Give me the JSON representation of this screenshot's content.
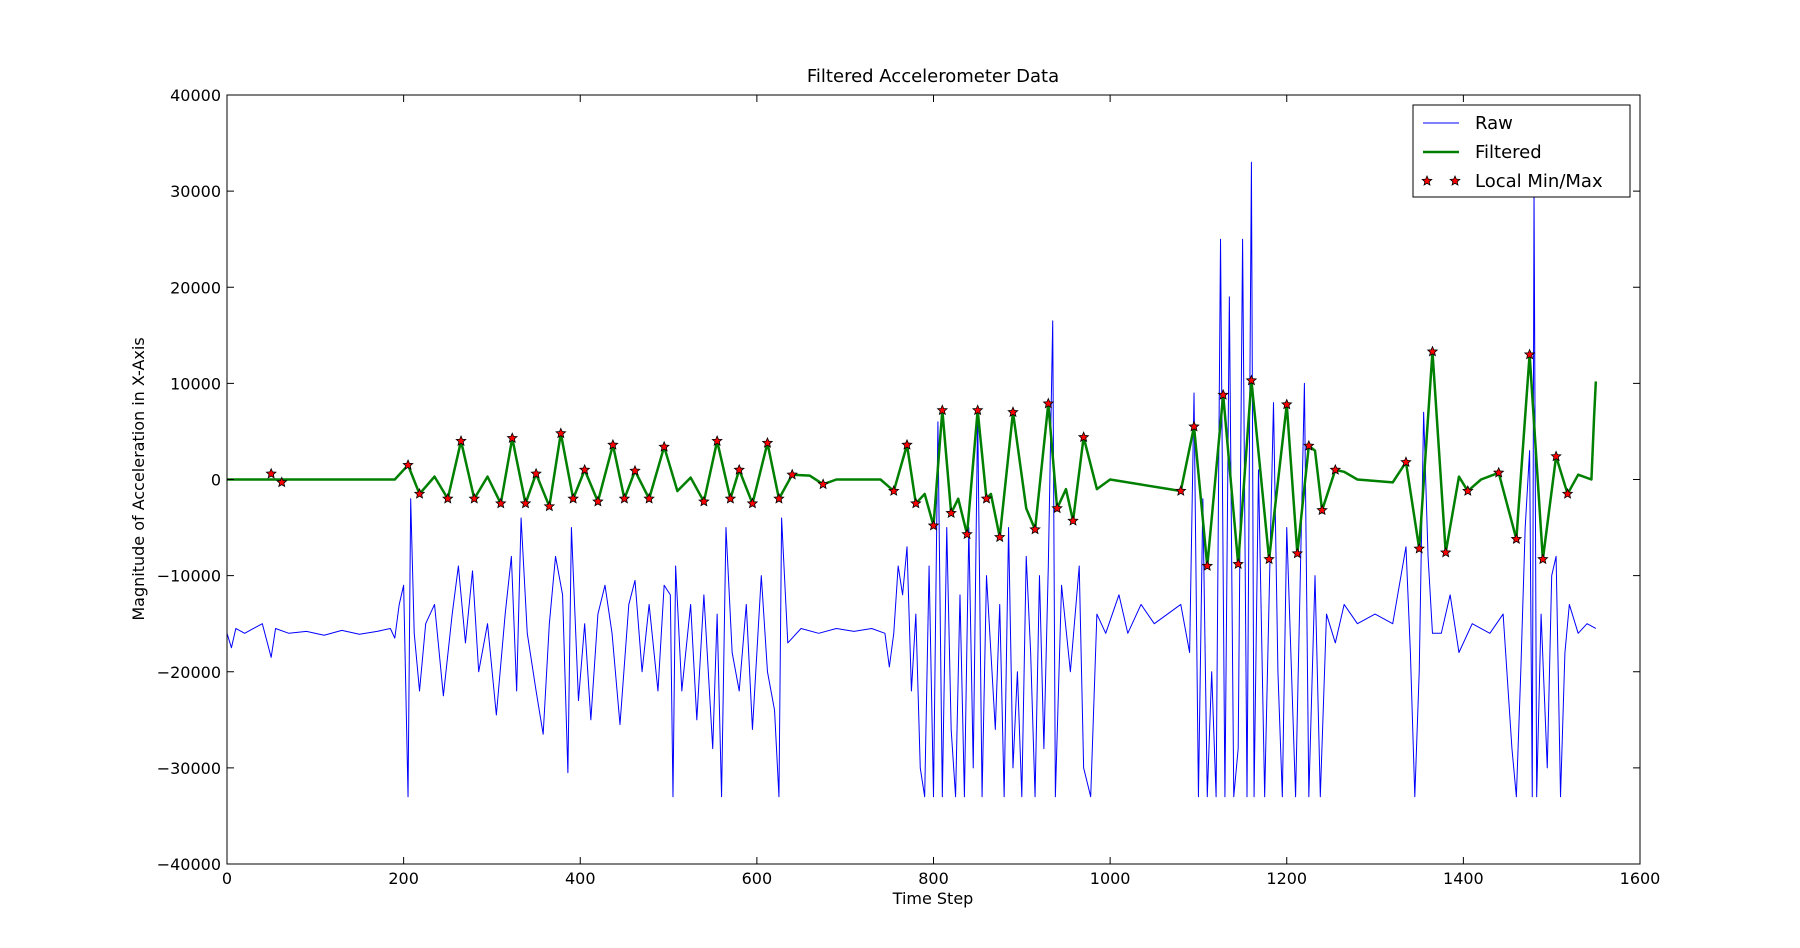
{
  "chart_data": {
    "type": "line",
    "title": "Filtered Accelerometer Data",
    "xlabel": "Time Step",
    "ylabel": "Magnitude of Acceleration in X-Axis",
    "xlim": [
      0,
      1600
    ],
    "ylim": [
      -40000,
      40000
    ],
    "xticks": [
      0,
      200,
      400,
      600,
      800,
      1000,
      1200,
      1400,
      1600
    ],
    "yticks": [
      {
        "value": -40000,
        "label": "−40000"
      },
      {
        "value": -30000,
        "label": "−30000"
      },
      {
        "value": -20000,
        "label": "−20000"
      },
      {
        "value": -10000,
        "label": "−10000"
      },
      0,
      10000,
      20000,
      30000,
      40000
    ],
    "legend": "upper right",
    "series": [
      {
        "name": "Raw",
        "color": "#0000ff",
        "style": "line",
        "linewidth": 1,
        "x": [
          0,
          5,
          10,
          20,
          30,
          40,
          50,
          55,
          70,
          90,
          110,
          130,
          150,
          170,
          185,
          190,
          195,
          200,
          205,
          208,
          212,
          218,
          225,
          235,
          245,
          255,
          262,
          270,
          278,
          285,
          295,
          305,
          315,
          322,
          328,
          333,
          340,
          350,
          358,
          365,
          372,
          380,
          386,
          390,
          398,
          405,
          412,
          420,
          428,
          436,
          445,
          455,
          462,
          470,
          478,
          488,
          495,
          502,
          505,
          508,
          515,
          525,
          532,
          540,
          550,
          555,
          560,
          565,
          572,
          580,
          588,
          595,
          605,
          612,
          620,
          625,
          628,
          635,
          650,
          670,
          690,
          710,
          730,
          745,
          750,
          755,
          760,
          765,
          770,
          775,
          780,
          785,
          790,
          795,
          800,
          805,
          810,
          815,
          820,
          825,
          830,
          835,
          840,
          845,
          850,
          855,
          860,
          870,
          875,
          880,
          885,
          890,
          895,
          900,
          905,
          910,
          915,
          920,
          925,
          930,
          935,
          938,
          945,
          955,
          965,
          970,
          978,
          985,
          995,
          1010,
          1020,
          1035,
          1050,
          1065,
          1080,
          1090,
          1095,
          1100,
          1105,
          1110,
          1115,
          1120,
          1125,
          1130,
          1135,
          1140,
          1145,
          1150,
          1155,
          1160,
          1163,
          1168,
          1175,
          1185,
          1190,
          1195,
          1200,
          1210,
          1220,
          1225,
          1232,
          1238,
          1245,
          1255,
          1265,
          1280,
          1300,
          1320,
          1335,
          1340,
          1345,
          1350,
          1355,
          1360,
          1365,
          1375,
          1385,
          1395,
          1410,
          1430,
          1445,
          1455,
          1460,
          1465,
          1470,
          1475,
          1478,
          1480,
          1483,
          1488,
          1495,
          1500,
          1505,
          1510,
          1515,
          1520,
          1530,
          1540,
          1550
        ],
        "values": [
          -16000,
          -17500,
          -15500,
          -16000,
          -15500,
          -15000,
          -18500,
          -15500,
          -16000,
          -15800,
          -16200,
          -15700,
          -16100,
          -15800,
          -15500,
          -16500,
          -13000,
          -11000,
          -33000,
          -2000,
          -16000,
          -22000,
          -15000,
          -13000,
          -22500,
          -14000,
          -9000,
          -17000,
          -9500,
          -20000,
          -15000,
          -24500,
          -14000,
          -8000,
          -22000,
          -4000,
          -16000,
          -22000,
          -26500,
          -15000,
          -8000,
          -12000,
          -30500,
          -5000,
          -23000,
          -15000,
          -25000,
          -14000,
          -11000,
          -16000,
          -25500,
          -13000,
          -10500,
          -20000,
          -13000,
          -22000,
          -11000,
          -12000,
          -33000,
          -9000,
          -22000,
          -13000,
          -25000,
          -12000,
          -28000,
          -14000,
          -33000,
          -5000,
          -18000,
          -22000,
          -13000,
          -26000,
          -10000,
          -20000,
          -24000,
          -33000,
          -4000,
          -17000,
          -15500,
          -16000,
          -15500,
          -15800,
          -15500,
          -16000,
          -19500,
          -16000,
          -9000,
          -12000,
          -7000,
          -22000,
          -14000,
          -30000,
          -33000,
          -9000,
          -33000,
          6000,
          -33000,
          -5000,
          -26000,
          -33000,
          -12000,
          -33000,
          -5000,
          -30000,
          7000,
          -33000,
          -10000,
          -26000,
          -13000,
          -33000,
          -5000,
          -30000,
          -20000,
          -33000,
          -8000,
          -18000,
          -33000,
          -10000,
          -28000,
          -9000,
          16500,
          -33000,
          -11000,
          -20000,
          -9000,
          -30000,
          -33000,
          -14000,
          -16000,
          -12000,
          -16000,
          -13000,
          -15000,
          -14000,
          -13000,
          -18000,
          9000,
          -33000,
          -2000,
          -33000,
          -20000,
          -33000,
          25000,
          -33000,
          19000,
          -33000,
          -28000,
          25000,
          -33000,
          33000,
          -33000,
          1000,
          -33000,
          8000,
          -20000,
          -33000,
          -5000,
          -33000,
          10000,
          -33000,
          -10000,
          -33000,
          -14000,
          -17000,
          -13000,
          -15000,
          -14000,
          -15000,
          -7000,
          -18000,
          -33000,
          -20000,
          7000,
          -8000,
          -16000,
          -16000,
          -12000,
          -18000,
          -15000,
          -16000,
          -14000,
          -28000,
          -33000,
          -20000,
          -5000,
          3000,
          -33000,
          30000,
          -33000,
          -14000,
          -30000,
          -10000,
          -8000,
          -33000,
          -18000,
          -13000,
          -16000,
          -15000,
          -15500
        ]
      },
      {
        "name": "Filtered",
        "color": "#008000",
        "style": "line",
        "linewidth": 2.5,
        "x": [
          0,
          190,
          205,
          218,
          235,
          250,
          265,
          280,
          295,
          310,
          323,
          338,
          350,
          365,
          378,
          392,
          405,
          420,
          437,
          450,
          462,
          478,
          495,
          510,
          525,
          540,
          555,
          570,
          580,
          595,
          612,
          625,
          640,
          660,
          675,
          690,
          740,
          755,
          770,
          780,
          790,
          800,
          810,
          820,
          828,
          838,
          850,
          860,
          865,
          875,
          890,
          905,
          915,
          930,
          940,
          950,
          958,
          970,
          985,
          1000,
          1080,
          1095,
          1110,
          1128,
          1145,
          1160,
          1180,
          1200,
          1212,
          1225,
          1232,
          1240,
          1255,
          1265,
          1280,
          1320,
          1335,
          1350,
          1365,
          1380,
          1395,
          1405,
          1420,
          1440,
          1460,
          1475,
          1490,
          1505,
          1518,
          1530,
          1545,
          1548,
          1550
        ],
        "values": [
          0,
          0,
          1500,
          -1500,
          300,
          -2000,
          4000,
          -2000,
          300,
          -2500,
          4300,
          -2500,
          600,
          -2800,
          4800,
          -2000,
          1000,
          -2300,
          3600,
          -2000,
          900,
          -2000,
          3400,
          -1200,
          200,
          -2300,
          4000,
          -2000,
          1000,
          -2500,
          3800,
          -2000,
          500,
          400,
          -500,
          0,
          0,
          -1200,
          3600,
          -2500,
          -1500,
          -4800,
          7200,
          -3500,
          -2000,
          -5700,
          7200,
          -2000,
          -1500,
          -6000,
          7000,
          -3000,
          -5200,
          7900,
          -3000,
          -1000,
          -4300,
          4400,
          -1000,
          0,
          -1200,
          5500,
          -9000,
          8800,
          -8800,
          10300,
          -8300,
          7800,
          -7700,
          3500,
          3000,
          -3200,
          1000,
          800,
          0,
          -300,
          1800,
          -7200,
          13300,
          -7600,
          300,
          -1200,
          0,
          700,
          -6200,
          13000,
          -8300,
          2400,
          -1500,
          500,
          0,
          6500,
          10200
        ]
      },
      {
        "name": "Local Min/Max",
        "color": "#ff0000",
        "style": "star",
        "x": [
          50,
          62,
          205,
          218,
          250,
          265,
          280,
          310,
          323,
          338,
          350,
          365,
          378,
          392,
          405,
          420,
          437,
          450,
          462,
          478,
          495,
          540,
          555,
          570,
          580,
          595,
          612,
          625,
          640,
          675,
          755,
          770,
          780,
          800,
          810,
          820,
          838,
          850,
          860,
          875,
          890,
          915,
          930,
          940,
          958,
          970,
          1080,
          1095,
          1110,
          1128,
          1145,
          1160,
          1180,
          1200,
          1212,
          1225,
          1240,
          1255,
          1335,
          1350,
          1365,
          1380,
          1405,
          1440,
          1460,
          1475,
          1490,
          1505,
          1518
        ],
        "values": [
          600,
          -300,
          1500,
          -1500,
          -2000,
          4000,
          -2000,
          -2500,
          4300,
          -2500,
          600,
          -2800,
          4800,
          -2000,
          1000,
          -2300,
          3600,
          -2000,
          900,
          -2000,
          3400,
          -2300,
          4000,
          -2000,
          1000,
          -2500,
          3800,
          -2000,
          500,
          -500,
          -1200,
          3600,
          -2500,
          -4800,
          7200,
          -3500,
          -5700,
          7200,
          -2000,
          -6000,
          7000,
          -5200,
          7900,
          -3000,
          -4300,
          4400,
          -1200,
          5500,
          -9000,
          8800,
          -8800,
          10300,
          -8300,
          7800,
          -7700,
          3500,
          -3200,
          1000,
          1800,
          -7200,
          13300,
          -7600,
          -1200,
          700,
          -6200,
          13000,
          -8300,
          2400,
          -1500
        ]
      }
    ]
  }
}
